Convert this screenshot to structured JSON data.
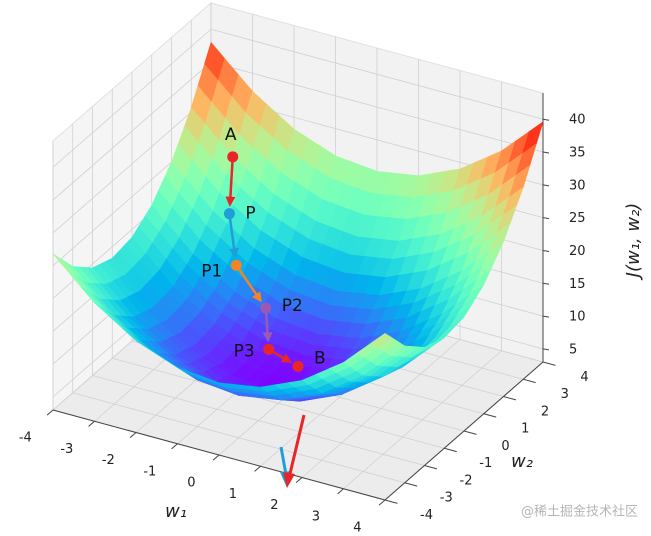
{
  "chart_data": {
    "type": "surface3d",
    "xlabel": "w₁",
    "ylabel": "w₂",
    "zlabel": "J(w₁, w₂)",
    "x": [
      -4,
      -3,
      -2,
      -1,
      0,
      1,
      2,
      3,
      4
    ],
    "y": [
      -4,
      -3,
      -2,
      -1,
      0,
      1,
      2,
      3,
      4
    ],
    "z": [
      [
        26.8,
        21.05,
        17,
        14.65,
        14,
        15.05,
        17.8,
        22.25,
        28.4
      ],
      [
        22.25,
        16.5,
        12.45,
        10.1,
        9.45,
        10.5,
        13.25,
        17.7,
        23.85
      ],
      [
        19.4,
        13.65,
        9.6,
        7.25,
        6.6,
        7.65,
        10.4,
        14.85,
        21
      ],
      [
        18.25,
        12.5,
        8.45,
        6.1,
        5.45,
        6.5,
        9.25,
        13.7,
        19.85
      ],
      [
        18.8,
        13.05,
        9,
        6.65,
        6,
        7.05,
        9.8,
        14.25,
        20.4
      ],
      [
        21.05,
        15.3,
        11.25,
        8.9,
        8.25,
        9.3,
        12.05,
        16.5,
        22.65
      ],
      [
        25,
        19.25,
        15.2,
        12.85,
        12.2,
        13.25,
        16,
        20.45,
        26.6
      ],
      [
        30.65,
        24.9,
        20.85,
        18.5,
        17.85,
        18.9,
        21.65,
        26.1,
        32.25
      ],
      [
        38,
        32.25,
        28.2,
        25.85,
        25.2,
        26.25,
        29,
        33.45,
        39.6
      ]
    ],
    "colormap": "rainbow",
    "xlim": [
      -4,
      4
    ],
    "ylim": [
      -4,
      4
    ],
    "zlim": [
      3,
      44
    ],
    "xticks": [
      -4,
      -3,
      -2,
      -1,
      0,
      1,
      2,
      3,
      4
    ],
    "yticks": [
      -4,
      -3,
      -2,
      -1,
      0,
      1,
      2,
      3,
      4
    ],
    "zticks": [
      5,
      10,
      15,
      20,
      25,
      30,
      35,
      40
    ],
    "grid": true,
    "points": [
      {
        "name": "A",
        "w1": -3,
        "w2": 3,
        "J": 24.9,
        "color": "#e8262a"
      },
      {
        "name": "P",
        "w1": -2.7,
        "w2": 2.2,
        "J": 18.85,
        "color": "#1f9fd8"
      },
      {
        "name": "P1",
        "w1": -2.2,
        "w2": 1.5,
        "J": 13.68,
        "color": "#f08427"
      },
      {
        "name": "P2",
        "w1": -1.3,
        "w2": 1.1,
        "J": 9.75,
        "color": "#9b59b6"
      },
      {
        "name": "P3",
        "w1": -0.8,
        "w2": 0.2,
        "J": 6.69,
        "color": "#e8262a"
      },
      {
        "name": "B",
        "w1": 0,
        "w2": 0,
        "J": 6,
        "color": "#e8262a"
      }
    ]
  },
  "watermark": "@稀土掘金技术社区"
}
